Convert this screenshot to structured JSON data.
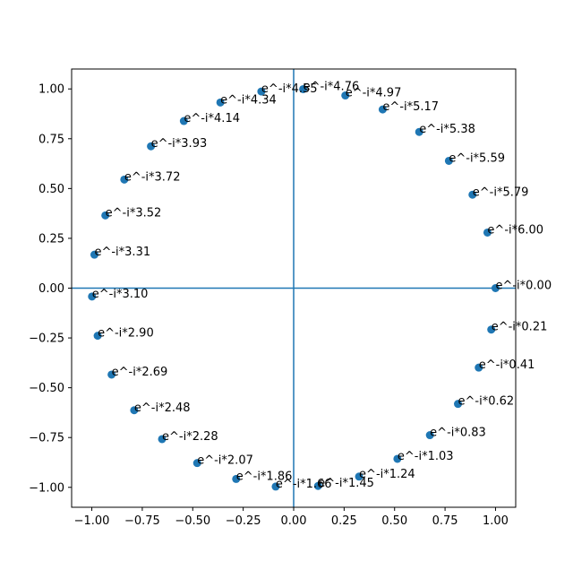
{
  "chart_data": {
    "type": "scatter",
    "title": "",
    "xlabel": "",
    "ylabel": "",
    "xlim": [
      -1.1,
      1.1
    ],
    "ylim": [
      -1.1,
      1.1
    ],
    "xticks": [
      -1.0,
      -0.75,
      -0.5,
      -0.25,
      0.0,
      0.25,
      0.5,
      0.75,
      1.0
    ],
    "xtick_labels": [
      "−1.00",
      "−0.75",
      "−0.50",
      "−0.25",
      "0.00",
      "0.25",
      "0.50",
      "0.75",
      "1.00"
    ],
    "yticks": [
      -1.0,
      -0.75,
      -0.5,
      -0.25,
      0.0,
      0.25,
      0.5,
      0.75,
      1.0
    ],
    "ytick_labels": [
      "−1.00",
      "−0.75",
      "−0.50",
      "−0.25",
      "0.00",
      "0.25",
      "0.50",
      "0.75",
      "1.00"
    ],
    "grid": false,
    "reference_lines": {
      "x": 0,
      "y": 0,
      "color": "#1f77b4"
    },
    "marker_color": "#1f77b4",
    "points": [
      {
        "x": 1.0,
        "y": 0.0,
        "label": "e^-i*0.00"
      },
      {
        "x": 0.979,
        "y": -0.208,
        "label": "e^-i*0.21"
      },
      {
        "x": 0.917,
        "y": -0.399,
        "label": "e^-i*0.41"
      },
      {
        "x": 0.814,
        "y": -0.581,
        "label": "e^-i*0.62"
      },
      {
        "x": 0.675,
        "y": -0.738,
        "label": "e^-i*0.83"
      },
      {
        "x": 0.514,
        "y": -0.857,
        "label": "e^-i*1.03"
      },
      {
        "x": 0.324,
        "y": -0.946,
        "label": "e^-i*1.24"
      },
      {
        "x": 0.121,
        "y": -0.993,
        "label": "e^-i*1.45"
      },
      {
        "x": -0.089,
        "y": -0.996,
        "label": "e^-i*1.66"
      },
      {
        "x": -0.285,
        "y": -0.958,
        "label": "e^-i*1.86"
      },
      {
        "x": -0.478,
        "y": -0.878,
        "label": "e^-i*2.07"
      },
      {
        "x": -0.652,
        "y": -0.758,
        "label": "e^-i*2.28"
      },
      {
        "x": -0.79,
        "y": -0.613,
        "label": "e^-i*2.48"
      },
      {
        "x": -0.902,
        "y": -0.434,
        "label": "e^-i*2.69"
      },
      {
        "x": -0.971,
        "y": -0.239,
        "label": "e^-i*2.90"
      },
      {
        "x": -0.999,
        "y": -0.042,
        "label": "e^-i*3.10"
      },
      {
        "x": -0.987,
        "y": 0.168,
        "label": "e^-i*3.31"
      },
      {
        "x": -0.933,
        "y": 0.365,
        "label": "e^-i*3.52"
      },
      {
        "x": -0.839,
        "y": 0.545,
        "label": "e^-i*3.72"
      },
      {
        "x": -0.707,
        "y": 0.712,
        "label": "e^-i*3.93"
      },
      {
        "x": -0.544,
        "y": 0.839,
        "label": "e^-i*4.14"
      },
      {
        "x": -0.363,
        "y": 0.932,
        "label": "e^-i*4.34"
      },
      {
        "x": -0.16,
        "y": 0.987,
        "label": "e^-i*4.55"
      },
      {
        "x": 0.047,
        "y": 0.999,
        "label": "e^-i*4.76"
      },
      {
        "x": 0.256,
        "y": 0.967,
        "label": "e^-i*4.97"
      },
      {
        "x": 0.441,
        "y": 0.897,
        "label": "e^-i*5.17"
      },
      {
        "x": 0.622,
        "y": 0.784,
        "label": "e^-i*5.38"
      },
      {
        "x": 0.769,
        "y": 0.639,
        "label": "e^-i*5.59"
      },
      {
        "x": 0.886,
        "y": 0.469,
        "label": "e^-i*5.79"
      },
      {
        "x": 0.96,
        "y": 0.279,
        "label": "e^-i*6.00"
      }
    ]
  }
}
